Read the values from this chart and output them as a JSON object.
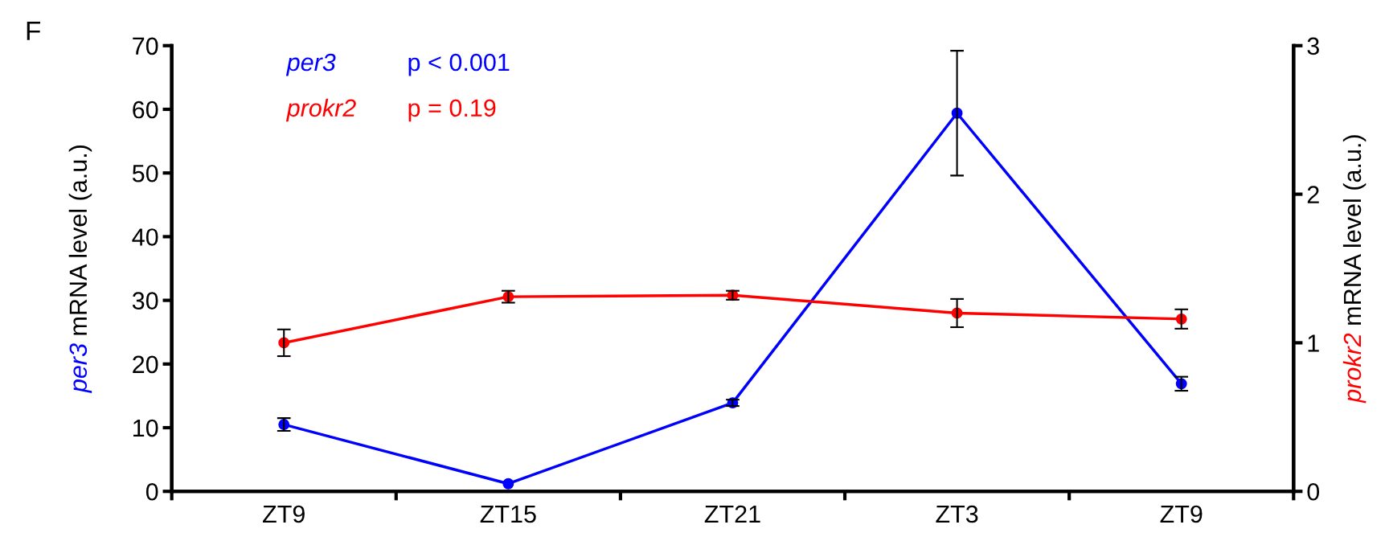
{
  "chart_data": {
    "type": "line",
    "categories": [
      "ZT9",
      "ZT15",
      "ZT21",
      "ZT3",
      "ZT9"
    ],
    "ylabel": "per3 mRNA level (a.u.)",
    "y2label": "prokr2 mRNA level (a.u.)",
    "ylim": [
      0,
      70
    ],
    "yticks": [
      0,
      10,
      20,
      30,
      40,
      50,
      60,
      70
    ],
    "y2lim": [
      0,
      3
    ],
    "y2ticks": [
      0,
      1,
      2,
      3
    ],
    "marker": "circle",
    "line_style": "solid",
    "grid": false,
    "annotations": [
      "F",
      "p < 0.001",
      "p = 0.19"
    ],
    "series": [
      {
        "name": "per3",
        "color": "#0000ff",
        "values": [
          10.5,
          1.2,
          13.9,
          59.4,
          16.9
        ],
        "errors": [
          1.0,
          null,
          0.5,
          9.8,
          1.1
        ]
      },
      {
        "name": "prokr2",
        "color": "#ff0000",
        "axis": "y2",
        "values": [
          1.0,
          1.31,
          1.32,
          1.2,
          1.16
        ],
        "errors": [
          0.09,
          0.04,
          0.03,
          0.095,
          0.065
        ]
      }
    ]
  }
}
